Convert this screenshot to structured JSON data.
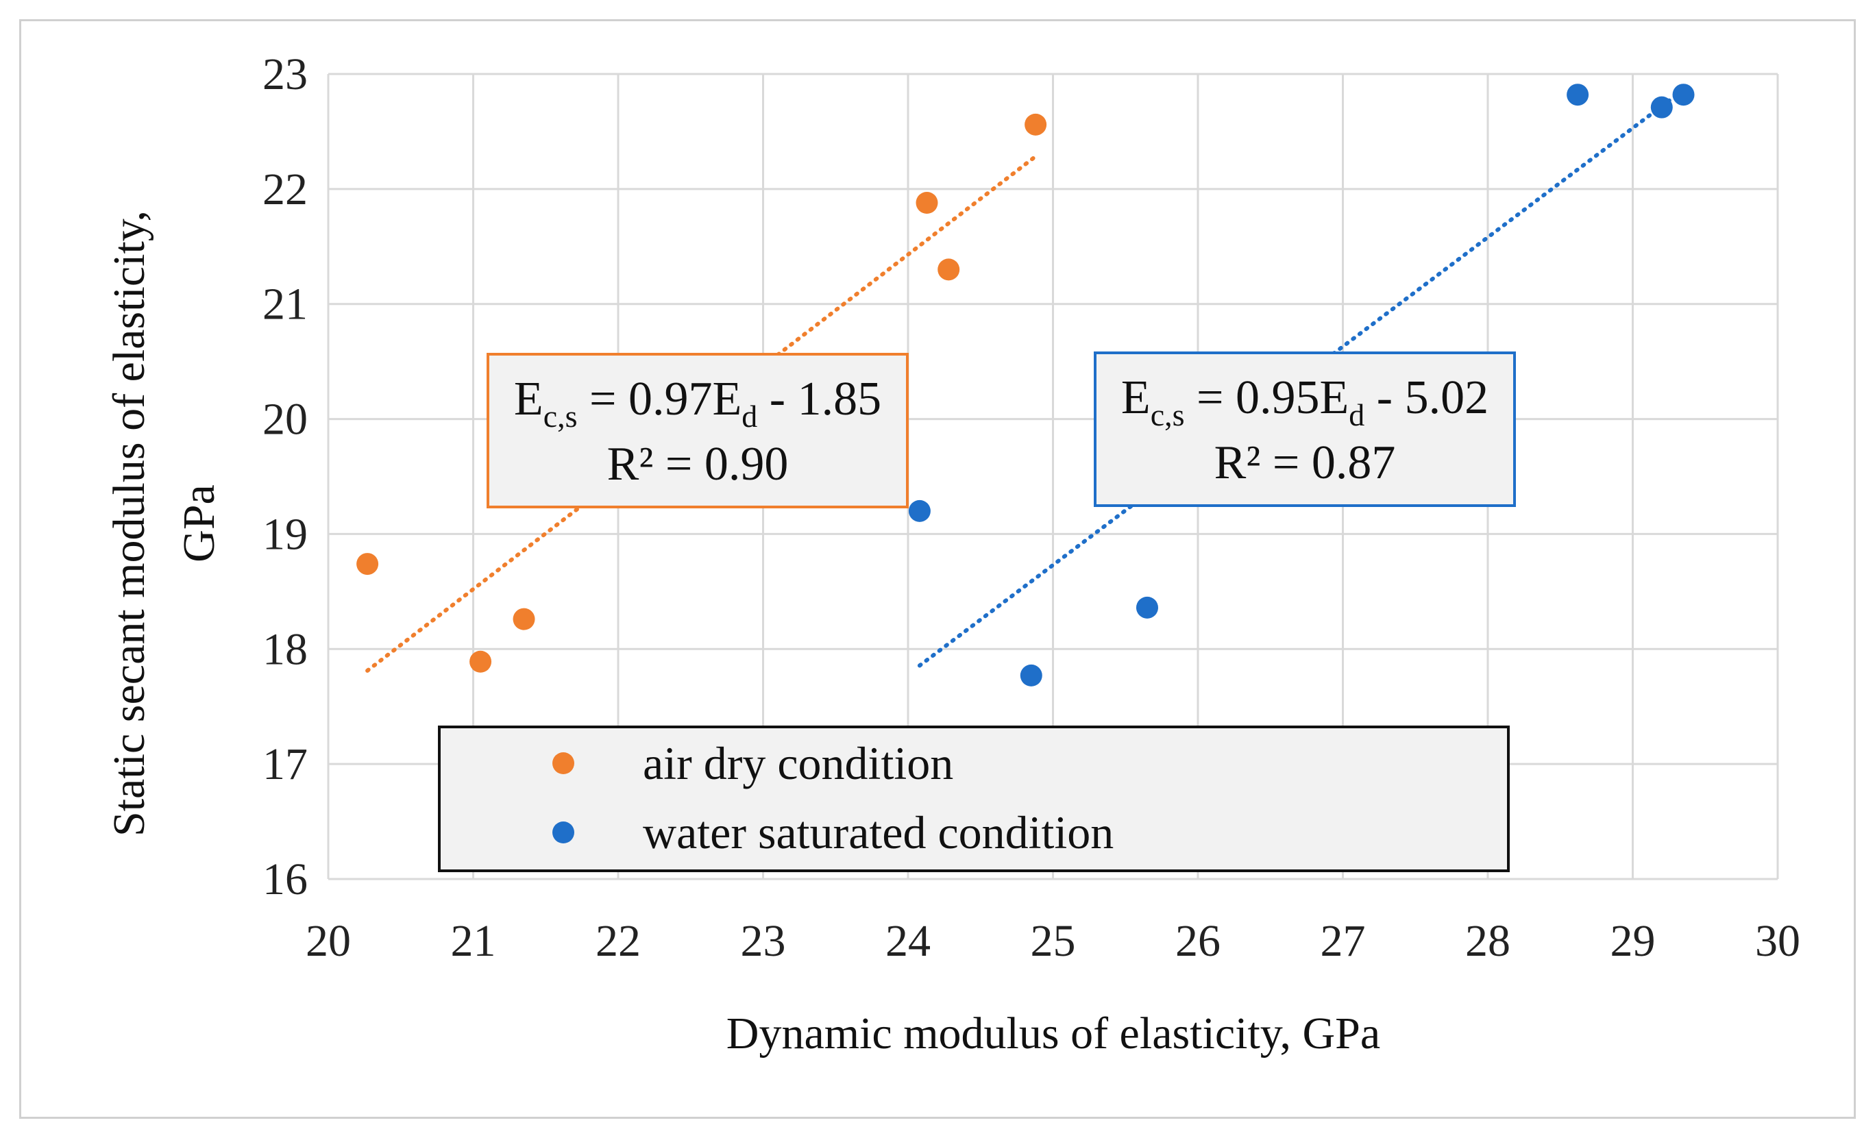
{
  "chart_data": {
    "type": "scatter",
    "title": "",
    "xlabel": "Dynamic modulus of elasticity, GPa",
    "ylabel_lines": [
      "Static secant modulus of elasticity,",
      "GPa"
    ],
    "xlim": [
      20,
      30
    ],
    "ylim": [
      16,
      23
    ],
    "x_ticks": [
      "20",
      "21",
      "22",
      "23",
      "24",
      "25",
      "26",
      "27",
      "28",
      "29",
      "30"
    ],
    "y_ticks": [
      "16",
      "17",
      "18",
      "19",
      "20",
      "21",
      "22",
      "23"
    ],
    "grid": true,
    "legend_position": "bottom-center",
    "series": [
      {
        "name": "air dry condition",
        "color": "#f07f2d",
        "points": [
          [
            20.27,
            18.74
          ],
          [
            21.05,
            17.89
          ],
          [
            21.35,
            18.26
          ],
          [
            24.13,
            21.88
          ],
          [
            24.28,
            21.3
          ],
          [
            24.88,
            22.56
          ]
        ],
        "trendline": {
          "slope": 0.97,
          "intercept": -1.85,
          "x_range": [
            20.27,
            24.88
          ]
        },
        "equation": {
          "lhs": "E",
          "lhs_sub": "c,s",
          "mid": " = 0.97E",
          "rhs_sub": "d",
          "tail": " - 1.85",
          "r2": "R² = 0.90"
        }
      },
      {
        "name": "water saturated condition",
        "color": "#1f6fc9",
        "points": [
          [
            24.08,
            19.2
          ],
          [
            24.85,
            17.77
          ],
          [
            25.65,
            18.36
          ],
          [
            28.62,
            22.82
          ],
          [
            29.2,
            22.71
          ],
          [
            29.35,
            22.82
          ]
        ],
        "trendline": {
          "slope": 0.95,
          "intercept": -5.02,
          "x_range": [
            24.08,
            29.35
          ]
        },
        "equation": {
          "lhs": "E",
          "lhs_sub": "c,s",
          "mid": " = 0.95E",
          "rhs_sub": "d",
          "tail": " - 5.02",
          "r2": "R² = 0.87"
        }
      }
    ]
  }
}
